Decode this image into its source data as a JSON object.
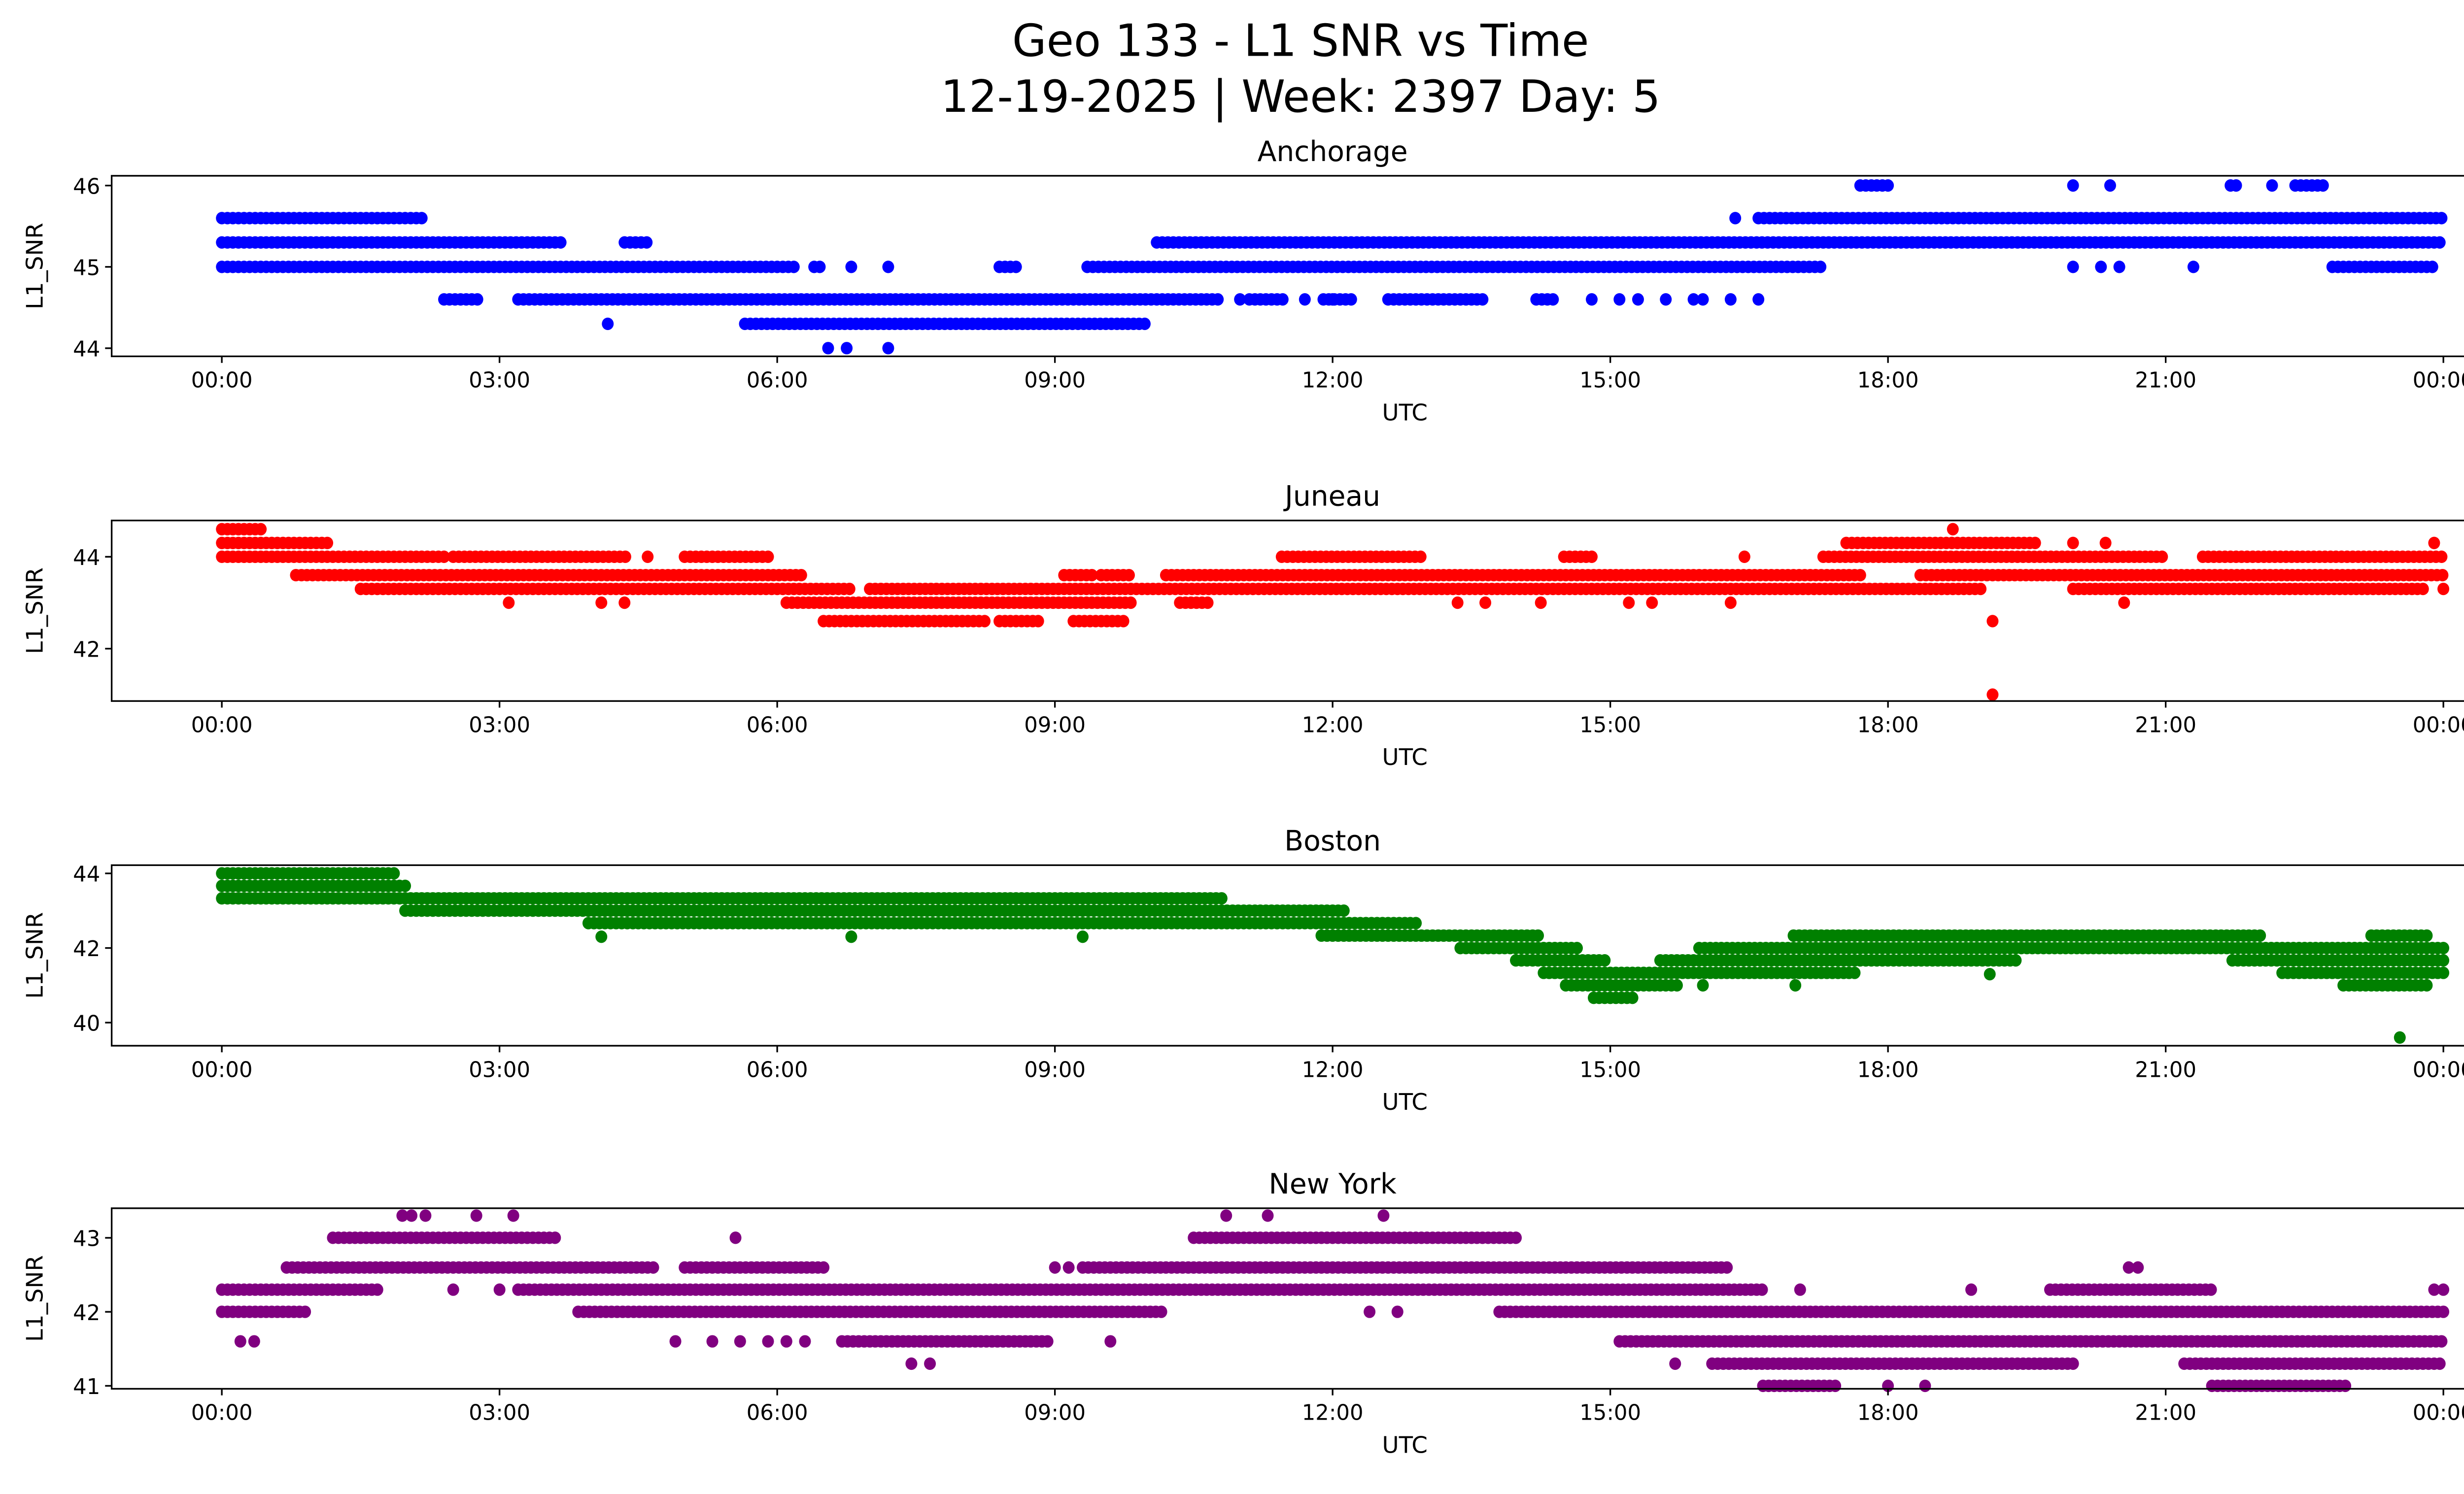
{
  "title_line1": "Geo 133 - L1 SNR vs Time",
  "title_line2": "12-19-2025 | Week: 2397 Day: 5",
  "chart_data": [
    {
      "type": "scatter",
      "title": "Anchorage",
      "xlabel": "UTC",
      "ylabel": "L1_SNR",
      "color": "#0000ff",
      "xlim": [
        -1.19,
        25.19
      ],
      "ylim": [
        43.9,
        46.12
      ],
      "yticks": [
        44,
        45,
        46
      ],
      "xticks": [
        0,
        3,
        6,
        9,
        12,
        15,
        18,
        21,
        24
      ],
      "xtick_labels": [
        "00:00",
        "03:00",
        "06:00",
        "09:00",
        "12:00",
        "15:00",
        "18:00",
        "21:00",
        "00:00"
      ],
      "bands": [
        {
          "v": 46.0,
          "ranges": [
            [
              17.7,
              18.05
            ],
            [
              21.7,
              21.8
            ],
            [
              22.4,
              22.7
            ]
          ],
          "points": [
            20.0,
            20.4,
            22.15
          ]
        },
        {
          "v": 45.6,
          "ranges": [
            [
              0,
              2.2
            ],
            [
              16.6,
              24
            ]
          ],
          "points": [
            16.35
          ]
        },
        {
          "v": 45.3,
          "ranges": [
            [
              0,
              3.7
            ],
            [
              4.35,
              4.6
            ],
            [
              10.1,
              24
            ]
          ],
          "points": []
        },
        {
          "v": 45.0,
          "ranges": [
            [
              0,
              6.2
            ],
            [
              6.4,
              6.5
            ],
            [
              8.4,
              8.6
            ],
            [
              9.35,
              17.3
            ],
            [
              22.8,
              23.9
            ]
          ],
          "points": [
            6.8,
            7.2,
            20.0,
            20.3,
            20.5,
            21.3
          ]
        },
        {
          "v": 44.6,
          "ranges": [
            [
              2.4,
              2.8
            ],
            [
              3.2,
              10.8
            ],
            [
              11.1,
              11.5
            ],
            [
              11.9,
              12.2
            ],
            [
              12.6,
              13.65
            ],
            [
              14.2,
              14.4
            ]
          ],
          "points": [
            11.0,
            11.7,
            12.0,
            14.8,
            15.1,
            15.3,
            15.6,
            15.9,
            16.0,
            16.3,
            16.6
          ]
        },
        {
          "v": 44.3,
          "ranges": [
            [
              5.65,
              10.0
            ]
          ],
          "points": [
            4.17
          ]
        },
        {
          "v": 44.0,
          "ranges": [],
          "points": [
            6.55,
            6.75,
            7.2
          ]
        }
      ]
    },
    {
      "type": "scatter",
      "title": "Juneau",
      "xlabel": "UTC",
      "ylabel": "L1_SNR",
      "color": "#ff0000",
      "xlim": [
        -1.19,
        25.19
      ],
      "ylim": [
        40.86,
        44.79
      ],
      "yticks": [
        42,
        44
      ],
      "xticks": [
        0,
        3,
        6,
        9,
        12,
        15,
        18,
        21,
        24
      ],
      "xtick_labels": [
        "00:00",
        "03:00",
        "06:00",
        "09:00",
        "12:00",
        "15:00",
        "18:00",
        "21:00",
        "00:00"
      ],
      "bands": [
        {
          "v": 44.6,
          "ranges": [
            [
              0,
              0.45
            ]
          ],
          "points": [
            18.7
          ]
        },
        {
          "v": 44.3,
          "ranges": [
            [
              0,
              1.15
            ],
            [
              17.55,
              19.6
            ]
          ],
          "points": [
            20.0,
            20.35,
            23.9
          ]
        },
        {
          "v": 44.0,
          "ranges": [
            [
              0,
              2.4
            ],
            [
              2.5,
              4.4
            ],
            [
              5.0,
              5.9
            ],
            [
              11.45,
              12.95
            ],
            [
              14.5,
              14.8
            ],
            [
              17.3,
              21.0
            ],
            [
              21.4,
              24
            ]
          ],
          "points": [
            4.6,
            16.45
          ]
        },
        {
          "v": 43.6,
          "ranges": [
            [
              0.8,
              6.3
            ],
            [
              9.1,
              9.4
            ],
            [
              9.5,
              9.8
            ],
            [
              10.2,
              17.7
            ],
            [
              18.35,
              24
            ]
          ],
          "points": []
        },
        {
          "v": 43.3,
          "ranges": [
            [
              1.5,
              6.8
            ],
            [
              7.0,
              19.05
            ],
            [
              20.0,
              23.8
            ]
          ],
          "points": [
            24.0
          ]
        },
        {
          "v": 43.0,
          "ranges": [
            [
              6.1,
              9.85
            ],
            [
              10.35,
              10.7
            ]
          ],
          "points": [
            3.1,
            4.1,
            4.35,
            13.35,
            13.65,
            14.25,
            15.2,
            15.45,
            16.3,
            20.55
          ]
        },
        {
          "v": 42.6,
          "ranges": [
            [
              6.5,
              8.25
            ],
            [
              8.4,
              8.85
            ],
            [
              9.2,
              9.75
            ]
          ],
          "points": [
            19.13
          ]
        },
        {
          "v": 41.0,
          "ranges": [],
          "points": [
            19.13
          ]
        }
      ]
    },
    {
      "type": "scatter",
      "title": "Boston",
      "xlabel": "UTC",
      "ylabel": "L1_SNR",
      "color": "#008000",
      "xlim": [
        -1.19,
        25.19
      ],
      "ylim": [
        39.38,
        44.22
      ],
      "yticks": [
        40,
        42,
        44
      ],
      "xticks": [
        0,
        3,
        6,
        9,
        12,
        15,
        18,
        21,
        24
      ],
      "xtick_labels": [
        "00:00",
        "03:00",
        "06:00",
        "09:00",
        "12:00",
        "15:00",
        "18:00",
        "21:00",
        "00:00"
      ],
      "profile": [
        [
          0,
          43.3,
          44.0
        ],
        [
          1.9,
          43.3,
          44.0
        ],
        [
          2.0,
          43.0,
          43.6
        ],
        [
          2.8,
          43.0,
          43.6
        ],
        [
          3.0,
          43.0,
          43.3
        ],
        [
          3.9,
          43.0,
          43.3
        ],
        [
          4.0,
          42.6,
          43.3
        ],
        [
          10.4,
          42.6,
          43.3
        ],
        [
          10.6,
          42.6,
          43.6
        ],
        [
          10.8,
          42.6,
          43.3
        ],
        [
          11.8,
          42.6,
          43.0
        ],
        [
          12.0,
          42.3,
          43.0
        ],
        [
          13.0,
          42.3,
          42.6
        ],
        [
          13.8,
          42.0,
          42.6
        ],
        [
          14.2,
          41.6,
          42.3
        ],
        [
          14.6,
          41.0,
          42.0
        ],
        [
          15.0,
          40.6,
          41.6
        ],
        [
          15.5,
          41.0,
          41.6
        ],
        [
          16.0,
          41.3,
          42.0
        ],
        [
          17.0,
          41.3,
          42.3
        ],
        [
          18.0,
          41.6,
          42.3
        ],
        [
          19.3,
          41.6,
          42.3
        ],
        [
          19.5,
          42.0,
          42.6
        ],
        [
          21.5,
          42.0,
          42.6
        ],
        [
          22.0,
          41.6,
          42.3
        ],
        [
          22.6,
          41.3,
          42.0
        ],
        [
          23.2,
          41.0,
          42.3
        ],
        [
          23.7,
          41.0,
          42.6
        ],
        [
          24.0,
          41.3,
          42.0
        ]
      ],
      "points": [
        [
          4.1,
          42.3
        ],
        [
          6.8,
          42.3
        ],
        [
          9.3,
          42.3
        ],
        [
          16.0,
          41.0
        ],
        [
          17.0,
          41.0
        ],
        [
          19.1,
          41.3
        ],
        [
          23.53,
          39.6
        ]
      ]
    },
    {
      "type": "scatter",
      "title": "New York",
      "xlabel": "UTC",
      "ylabel": "L1_SNR",
      "color": "#800080",
      "xlim": [
        -1.19,
        25.19
      ],
      "ylim": [
        40.96,
        43.4
      ],
      "yticks": [
        41,
        42,
        43
      ],
      "xticks": [
        0,
        3,
        6,
        9,
        12,
        15,
        18,
        21,
        24
      ],
      "xtick_labels": [
        "00:00",
        "03:00",
        "06:00",
        "09:00",
        "12:00",
        "15:00",
        "18:00",
        "21:00",
        "00:00"
      ],
      "bands": [
        {
          "v": 43.3,
          "ranges": [],
          "points": [
            1.95,
            2.05,
            2.2,
            2.75,
            3.15,
            10.85,
            11.3,
            12.55
          ]
        },
        {
          "v": 43.0,
          "ranges": [
            [
              1.2,
              3.65
            ],
            [
              10.5,
              14.0
            ]
          ],
          "points": [
            5.55
          ]
        },
        {
          "v": 42.6,
          "ranges": [
            [
              0.7,
              4.7
            ],
            [
              5.0,
              6.5
            ],
            [
              9.3,
              16.3
            ]
          ],
          "points": [
            9.0,
            9.15,
            20.6,
            20.7
          ]
        },
        {
          "v": 42.3,
          "ranges": [
            [
              0,
              1.7
            ],
            [
              3.2,
              16.65
            ],
            [
              19.75,
              21.5
            ]
          ],
          "points": [
            2.5,
            3.0,
            17.05,
            18.9,
            23.9,
            24.0
          ]
        },
        {
          "v": 42.0,
          "ranges": [
            [
              0,
              0.9
            ],
            [
              3.85,
              10.2
            ],
            [
              13.8,
              24
            ]
          ],
          "points": [
            12.4,
            12.7
          ]
        },
        {
          "v": 41.6,
          "ranges": [
            [
              6.7,
              8.95
            ],
            [
              15.1,
              24
            ]
          ],
          "points": [
            0.2,
            0.35,
            4.9,
            5.3,
            5.6,
            5.9,
            6.1,
            6.3,
            9.6
          ]
        },
        {
          "v": 41.3,
          "ranges": [
            [
              16.1,
              20.0
            ],
            [
              21.2,
              24
            ]
          ],
          "points": [
            7.45,
            7.65,
            15.7
          ]
        },
        {
          "v": 41.0,
          "ranges": [
            [
              16.65,
              17.45
            ],
            [
              21.5,
              22.95
            ]
          ],
          "points": [
            18.0,
            18.4
          ]
        }
      ]
    }
  ]
}
